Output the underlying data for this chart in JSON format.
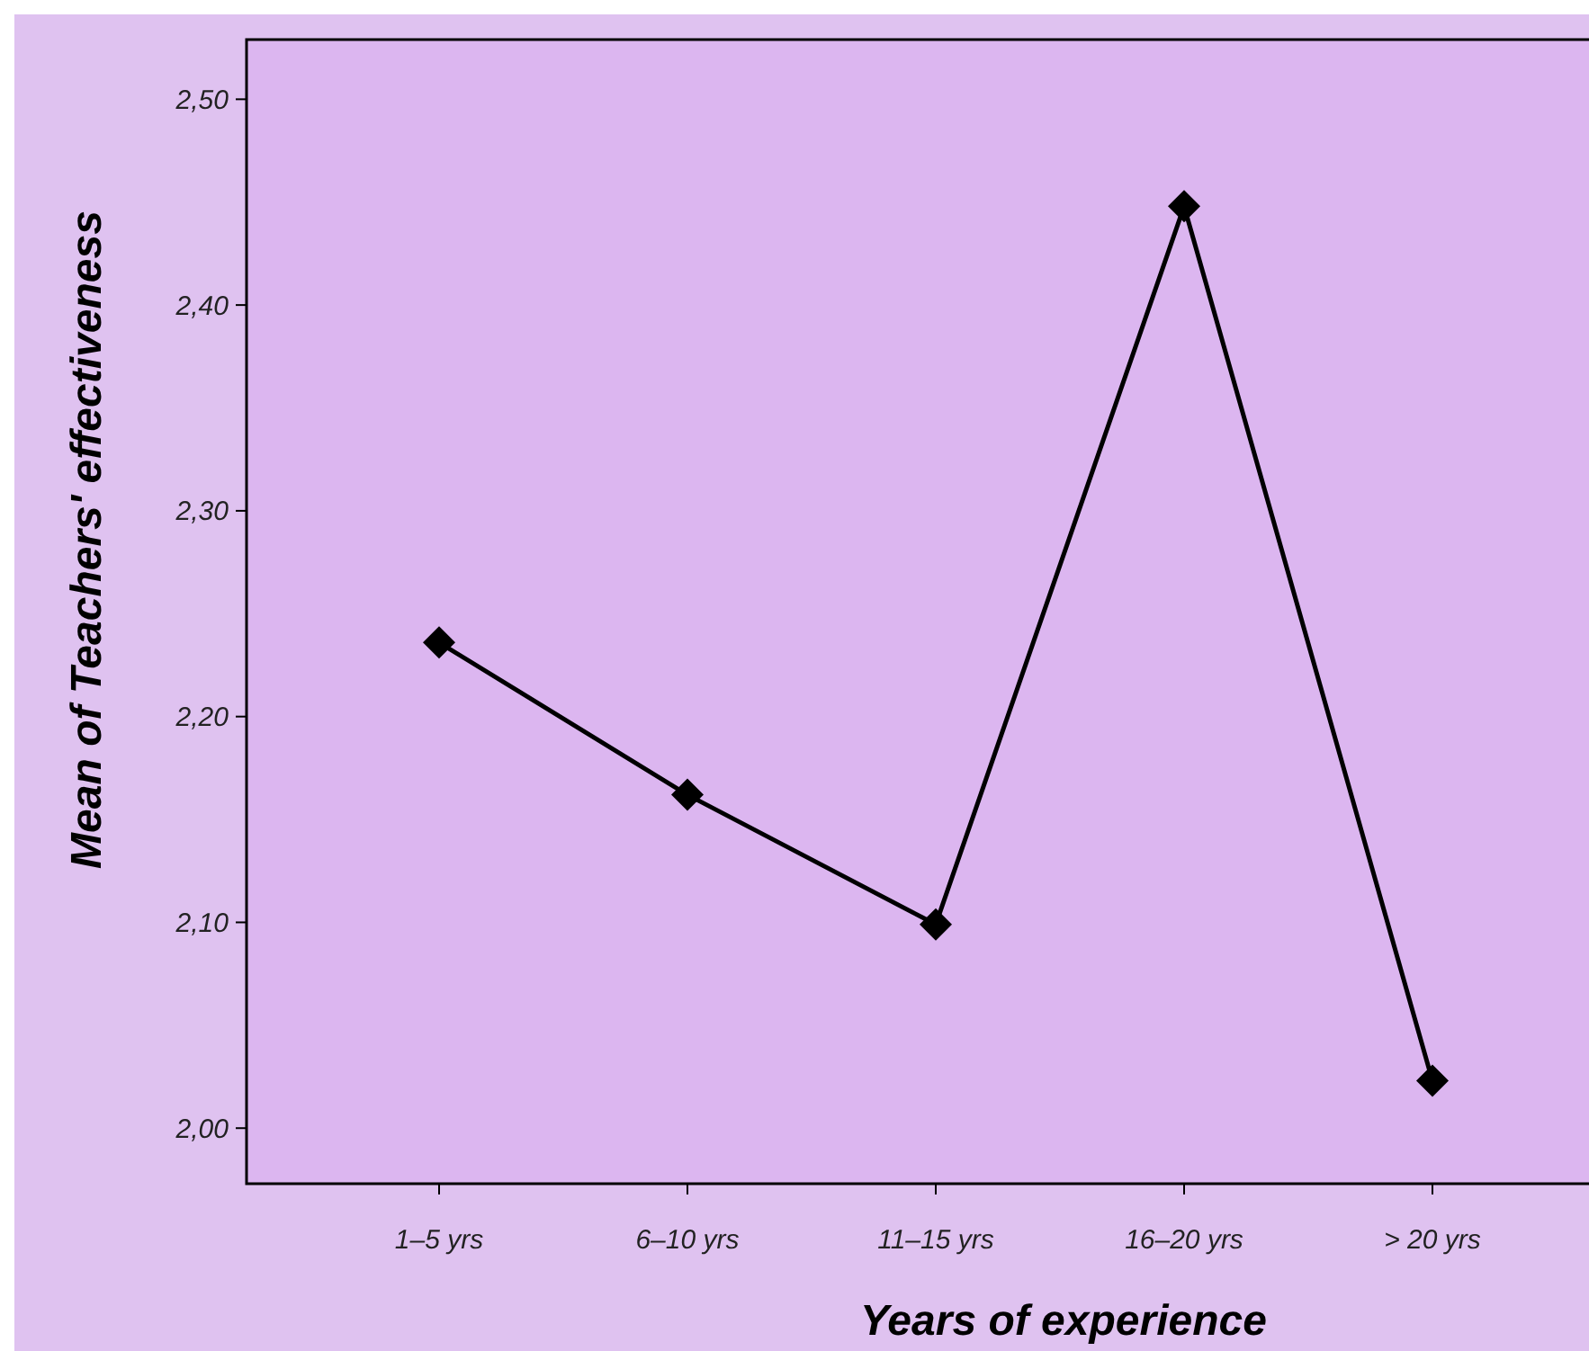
{
  "chart_data": {
    "type": "line",
    "xlabel": "Years of experience",
    "ylabel": "Mean of Teachers' effectiveness",
    "categories": [
      "1–5 yrs",
      "6–10 yrs",
      "11–15 yrs",
      "16–20 yrs",
      "> 20 yrs"
    ],
    "series": [
      {
        "color": "#000000",
        "values": [
          2.236,
          2.162,
          2.099,
          2.448,
          2.023
        ]
      }
    ],
    "ylim": [
      1.973,
      2.529
    ],
    "yticks": [
      {
        "value": 2.0,
        "label": "2,00"
      },
      {
        "value": 2.1,
        "label": "2,10"
      },
      {
        "value": 2.2,
        "label": "2,20"
      },
      {
        "value": 2.3,
        "label": "2,30"
      },
      {
        "value": 2.4,
        "label": "2,40"
      },
      {
        "value": 2.5,
        "label": "2,50"
      }
    ],
    "grid": false,
    "marker": "diamond",
    "line_style": "solid"
  }
}
